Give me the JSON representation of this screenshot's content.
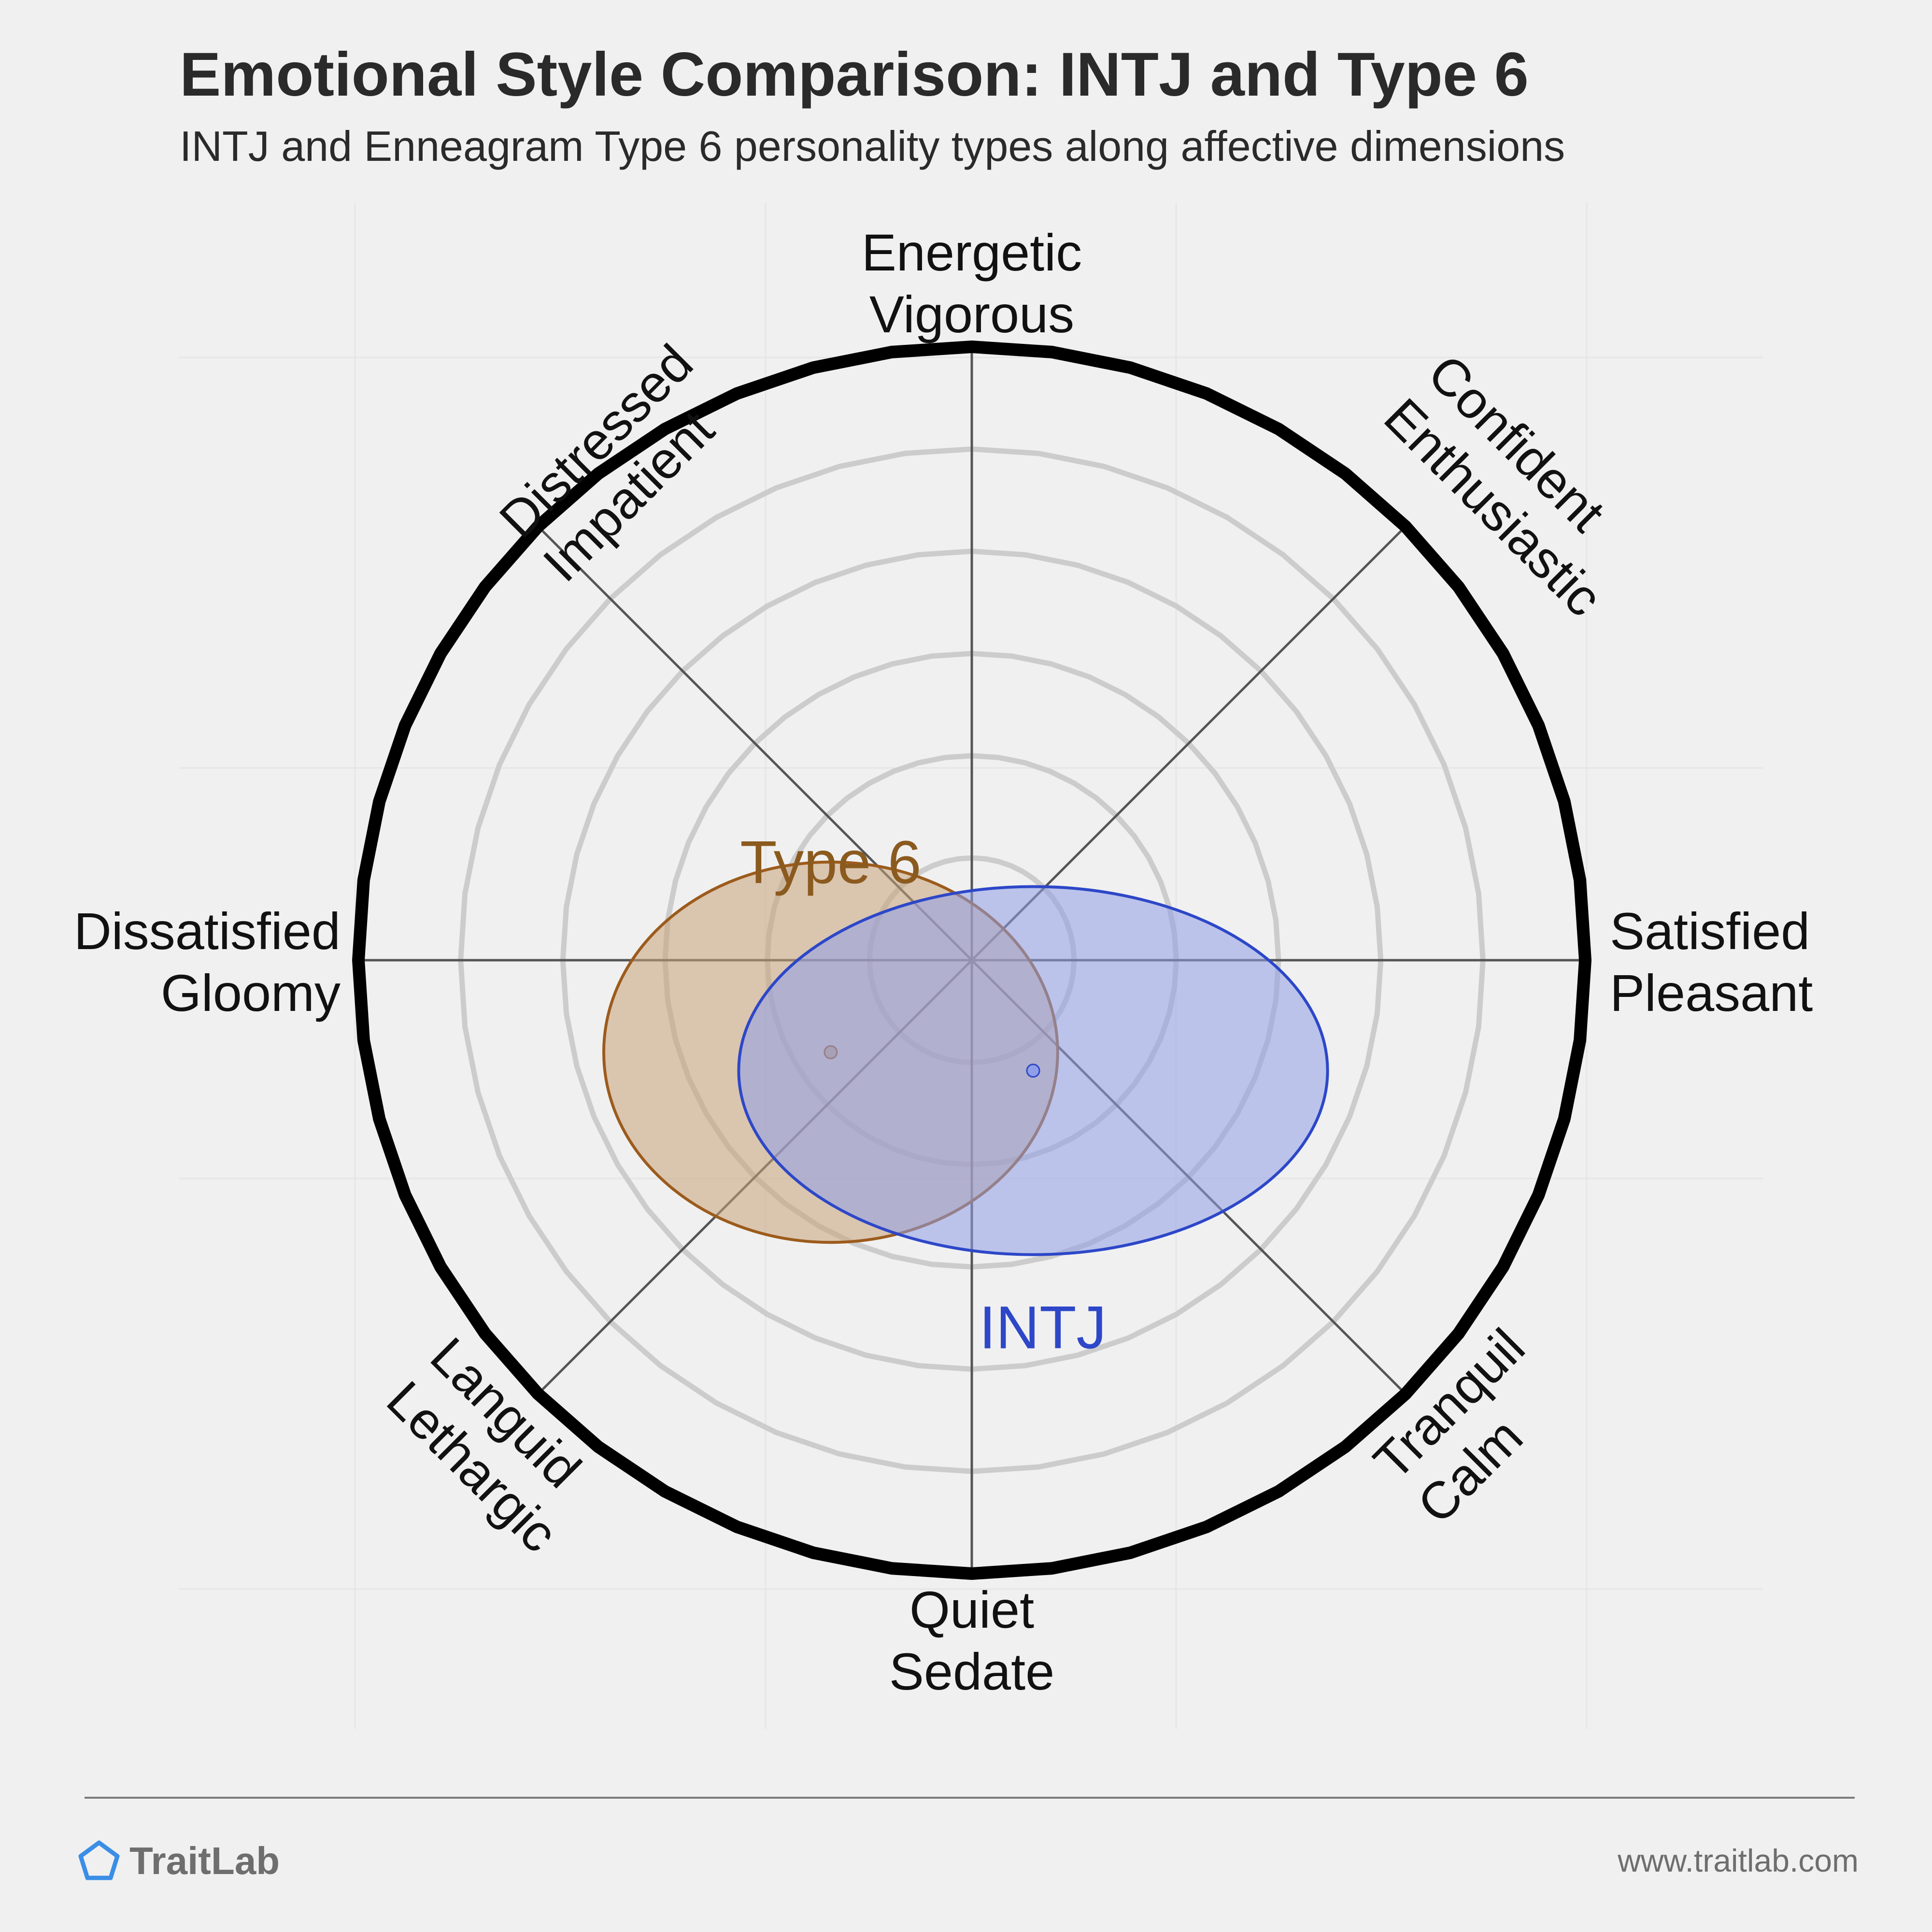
{
  "title": "Emotional Style Comparison: INTJ and Type 6",
  "subtitle": "INTJ and Enneagram Type 6 personality types along affective dimensions",
  "brand": {
    "name": "TraitLab",
    "logo_icon": "pentagon-icon",
    "url": "www.traitlab.com"
  },
  "colors": {
    "background": "#f0f0f0",
    "outer_ring": "#000000",
    "inner_ring": "#cccccc",
    "spoke": "#555555",
    "type6_fill": "#c8a27a",
    "type6_stroke": "#9c5b1c",
    "type6_label": "#8b5a1e",
    "intj_fill": "#8f9ee8",
    "intj_stroke": "#2d47c8",
    "intj_label": "#2d47c8",
    "logo": "#3a8ee6"
  },
  "chart_data": {
    "type": "scatter",
    "title": "Emotional Style Comparison: INTJ and Type 6",
    "subtitle": "INTJ and Enneagram Type 6 personality types along affective dimensions",
    "axes": {
      "x": {
        "negative": [
          "Dissatisfied",
          "Gloomy"
        ],
        "positive": [
          "Satisfied",
          "Pleasant"
        ]
      },
      "y": {
        "negative": [
          "Quiet",
          "Sedate"
        ],
        "positive": [
          "Energetic",
          "Vigorous"
        ]
      },
      "diagonals": {
        "up_left": [
          "Distressed",
          "Impatient"
        ],
        "up_right": [
          "Confident",
          "Enthusiastic"
        ],
        "down_left": [
          "Languid",
          "Lethargic"
        ],
        "down_right": [
          "Tranquil",
          "Calm"
        ]
      },
      "range": [
        -1,
        1
      ],
      "rings": 6
    },
    "series": [
      {
        "name": "Type 6",
        "x": -0.23,
        "y": -0.15,
        "spread_x": 0.37,
        "spread_y": 0.31
      },
      {
        "name": "INTJ",
        "x": 0.1,
        "y": -0.18,
        "spread_x": 0.48,
        "spread_y": 0.3
      }
    ]
  }
}
